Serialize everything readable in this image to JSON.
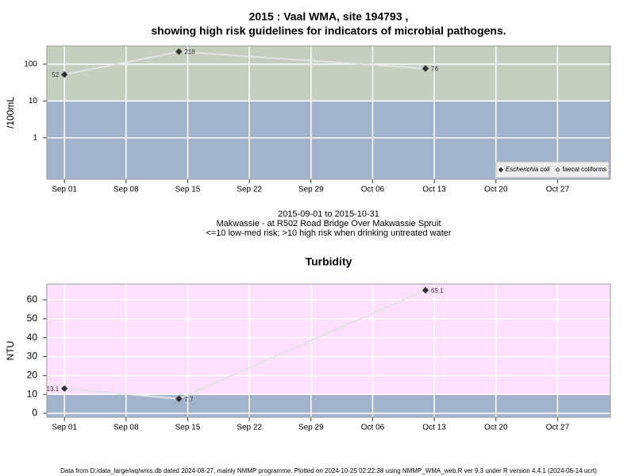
{
  "chart_data": [
    {
      "type": "line",
      "title": "2015 : Vaal WMA, site 194793 ,",
      "subtitle": "showing high risk guidelines for indicators of microbial pathogens.",
      "y_label": "/100mL",
      "ylog": true,
      "ylim": [
        0.075,
        310
      ],
      "yticks": [
        1,
        10,
        100
      ],
      "xlim": [
        "2015-08-30",
        "2015-11-02"
      ],
      "xticks": [
        {
          "value": "2015-09-01",
          "label": "Sep 01"
        },
        {
          "value": "2015-09-08",
          "label": "Sep 08"
        },
        {
          "value": "2015-09-15",
          "label": "Sep 15"
        },
        {
          "value": "2015-09-22",
          "label": "Sep 22"
        },
        {
          "value": "2015-09-29",
          "label": "Sep 29"
        },
        {
          "value": "2015-10-06",
          "label": "Oct 06"
        },
        {
          "value": "2015-10-13",
          "label": "Oct 13"
        },
        {
          "value": "2015-10-20",
          "label": "Oct 20"
        },
        {
          "value": "2015-10-27",
          "label": "Oct 27"
        }
      ],
      "x": [
        "2015-09-01",
        "2015-09-14",
        "2015-10-12"
      ],
      "threshold": 10,
      "low_color": "#a3b3cc",
      "high_color": "#c4cfc0",
      "grid": true,
      "legend": "bottom right",
      "series": [
        {
          "name": "Escherichia coli",
          "color": "#333333",
          "values": [
            52,
            218,
            76
          ]
        },
        {
          "name": "faecal coliforms",
          "color": "#555555",
          "marker": "open",
          "values": [
            null,
            null,
            null
          ]
        }
      ]
    },
    {
      "type": "line",
      "title": "Turbidity",
      "y_label": "NTU",
      "ylog": false,
      "ylim": [
        -2.1,
        68.4
      ],
      "yticks": [
        0,
        10,
        20,
        30,
        40,
        50,
        60
      ],
      "xlim": [
        "2015-08-30",
        "2015-11-02"
      ],
      "xticks": [
        {
          "value": "2015-09-01",
          "label": "Sep 01"
        },
        {
          "value": "2015-09-08",
          "label": "Sep 08"
        },
        {
          "value": "2015-09-15",
          "label": "Sep 15"
        },
        {
          "value": "2015-09-22",
          "label": "Sep 22"
        },
        {
          "value": "2015-09-29",
          "label": "Sep 29"
        },
        {
          "value": "2015-10-06",
          "label": "Oct 06"
        },
        {
          "value": "2015-10-13",
          "label": "Oct 13"
        },
        {
          "value": "2015-10-20",
          "label": "Oct 20"
        },
        {
          "value": "2015-10-27",
          "label": "Oct 27"
        }
      ],
      "x": [
        "2015-09-01",
        "2015-09-14",
        "2015-10-12"
      ],
      "threshold": 10,
      "low_color": "#a3b3cc",
      "high_color": "#ffe0ff",
      "grid": true,
      "series": [
        {
          "name": "Turbidity",
          "color": "#333333",
          "values": [
            13.1,
            7.7,
            65.1
          ]
        }
      ]
    }
  ],
  "captions": [
    "2015-09-01 to 2015-10-31",
    "Makwassie - at R502 Road Bridge Over Makwassie Spruit",
    "<=10 low-med risk; >10 high risk when drinking untreated water"
  ],
  "footer": "Data from D:/data_large/wq/wms.db dated 2024-08-27, mainly NMMP programme. Plotted on 2024-10-25 02:22:38 using NMMP_WMA_web.R ver 9.3 under R version 4.4.1 (2024-06-14 ucrt)"
}
